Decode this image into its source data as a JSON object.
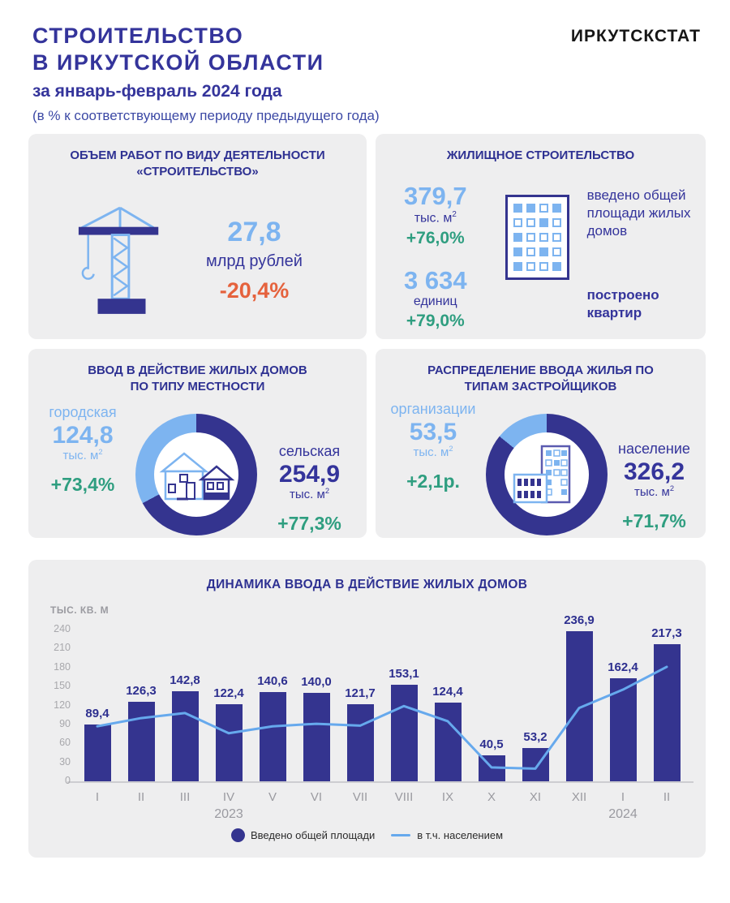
{
  "page": {
    "logo": "ИРКУТСКСТАТ",
    "title_line1": "СТРОИТЕЛЬСТВО",
    "title_line2": "В ИРКУТСКОЙ ОБЛАСТИ",
    "subtitle": "за январь-февраль 2024 года",
    "note": "(в % к соответствующему периоду предыдущего года)"
  },
  "colors": {
    "dark_blue": "#2e3192",
    "bar_blue": "#34348f",
    "light_blue": "#7db4f0",
    "line_blue": "#66a9ed",
    "green": "#2f9e80",
    "orange": "#e5623d",
    "axis_gray": "#9a9aa0",
    "card_bg": "#eeeeef"
  },
  "cards": {
    "volume": {
      "title_line1": "ОБЪЕМ РАБОТ ПО ВИДУ ДЕЯТЕЛЬНОСТИ",
      "title_line2": "«СТРОИТЕЛЬСТВО»",
      "value": "27,8",
      "unit": "млрд рублей",
      "change": "-20,4%"
    },
    "housing": {
      "title": "ЖИЛИЩНОЕ СТРОИТЕЛЬСТВО",
      "area": {
        "value": "379,7",
        "unit": "тыс. м",
        "sup": "2",
        "change": "+76,0%",
        "caption": "введено общей площади жилых домов"
      },
      "flats": {
        "value": "3 634",
        "unit": "единиц",
        "change": "+79,0%",
        "caption": "построено квартир"
      },
      "icon_rows": [
        "1101",
        "0010",
        "1000",
        "1010",
        "1001"
      ]
    },
    "locality": {
      "title_line1": "ВВОД В ДЕЙСТВИЕ ЖИЛЫХ ДОМОВ",
      "title_line2": "ПО ТИПУ МЕСТНОСТИ",
      "urban": {
        "label": "городская",
        "value": "124,8",
        "unit": "тыс. м",
        "sup": "2",
        "change": "+73,4%"
      },
      "rural": {
        "label": "сельская",
        "value": "254,9",
        "unit": "тыс. м",
        "sup": "2",
        "change": "+77,3%"
      },
      "donut": {
        "dark_deg": 242,
        "dark": "#34348f",
        "light": "#7db4f0"
      }
    },
    "developers": {
      "title_line1": "РАСПРЕДЕЛЕНИЕ ВВОДА ЖИЛЬЯ ПО",
      "title_line2": "ТИПАМ ЗАСТРОЙЩИКОВ",
      "org": {
        "label": "организации",
        "value": "53,5",
        "unit": "тыс. м",
        "sup": "2",
        "change": "+2,1р."
      },
      "pop": {
        "label": "население",
        "value": "326,2",
        "unit": "тыс. м",
        "sup": "2",
        "change": "+71,7%"
      },
      "donut": {
        "dark_deg": 309,
        "dark": "#34348f",
        "light": "#7db4f0"
      }
    }
  },
  "chart_data": {
    "type": "bar",
    "title": "ДИНАМИКА ВВОДА В ДЕЙСТВИЕ ЖИЛЫХ ДОМОВ",
    "xlabel": "",
    "ylabel": "ТЫС. КВ. М",
    "categories": [
      "I",
      "II",
      "III",
      "IV",
      "V",
      "VI",
      "VII",
      "VIII",
      "IX",
      "X",
      "XI",
      "XII",
      "I",
      "II"
    ],
    "year_labels": [
      {
        "index": 3,
        "label": "2023"
      },
      {
        "index": 12,
        "label": "2024"
      }
    ],
    "series": [
      {
        "name": "Введено общей площади",
        "type": "bar",
        "values": [
          89.4,
          126.3,
          142.8,
          122.4,
          140.6,
          140.0,
          121.7,
          153.1,
          124.4,
          40.5,
          53.2,
          236.9,
          162.4,
          217.3
        ],
        "labels": [
          "89,4",
          "126,3",
          "142,8",
          "122,4",
          "140,6",
          "140,0",
          "121,7",
          "153,1",
          "124,4",
          "40,5",
          "53,2",
          "236,9",
          "162,4",
          "217,3"
        ]
      },
      {
        "name": "в т.ч. населением",
        "type": "line",
        "values_estimated": [
          87,
          100,
          108,
          76,
          87,
          91,
          88,
          119,
          95,
          22,
          20,
          116,
          145,
          181
        ]
      }
    ],
    "yticks": [
      0,
      30,
      60,
      90,
      120,
      150,
      180,
      210,
      240
    ],
    "ylim": [
      0,
      240
    ],
    "grid": false,
    "legend_position": "bottom"
  }
}
